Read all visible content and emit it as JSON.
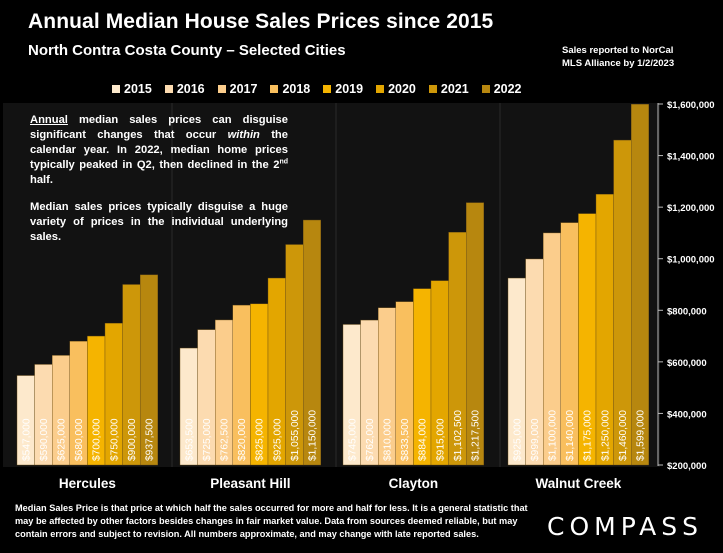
{
  "header": {
    "title": "Annual Median House Sales Prices since 2015",
    "subtitle": "North Contra Costa County – Selected Cities",
    "source_line1": "Sales reported to NorCal",
    "source_line2": "MLS Alliance by 1/2/2023"
  },
  "annotation": {
    "p1_a": "Annual",
    "p1_b": " median sales prices can disguise significant changes that occur ",
    "p1_c": "within",
    "p1_d": " the calendar year. In 2022, median home prices typically peaked in Q2, then declined in the 2",
    "p1_e": "nd",
    "p1_f": " half.",
    "p2": "Median sales prices typically disguise a huge variety of prices in the individual underlying sales."
  },
  "footer": {
    "text": "Median Sales Price is that price at which half the sales occurred for more and half for less. It is a general statistic that may be affected by other factors besides changes in fair market value. Data from sources deemed reliable, but may contain errors and subject to revision.  All numbers approximate, and may change with late reported sales."
  },
  "logo": {
    "text": "COMPASS"
  },
  "chart_data": {
    "type": "bar",
    "title": "Annual Median House Sales Prices since 2015",
    "subtitle": "North Contra Costa County – Selected Cities",
    "categories": [
      "Hercules",
      "Pleasant Hill",
      "Clayton",
      "Walnut Creek"
    ],
    "series": [
      {
        "name": "2015",
        "color": "#fde9cc",
        "values": [
          547000,
          653500,
          745000,
          925000
        ],
        "labels": [
          "$547,000",
          "$653,500",
          "$745,000",
          "$925,000"
        ]
      },
      {
        "name": "2016",
        "color": "#fcdbb0",
        "values": [
          590000,
          725000,
          762000,
          999000
        ],
        "labels": [
          "$590,000",
          "$725,000",
          "$762,000",
          "$999,000"
        ]
      },
      {
        "name": "2017",
        "color": "#fbcd8c",
        "values": [
          625000,
          762500,
          810000,
          1100000
        ],
        "labels": [
          "$625,000",
          "$762,500",
          "$810,000",
          "$1,100,000"
        ]
      },
      {
        "name": "2018",
        "color": "#f9bf5e",
        "values": [
          680000,
          820000,
          833500,
          1140000
        ],
        "labels": [
          "$680,000",
          "$820,000",
          "$833,500",
          "$1,140,000"
        ]
      },
      {
        "name": "2019",
        "color": "#f5b400",
        "values": [
          700000,
          825000,
          884000,
          1175000
        ],
        "labels": [
          "$700,000",
          "$825,000",
          "$884,000",
          "$1,175,000"
        ]
      },
      {
        "name": "2020",
        "color": "#e3a600",
        "values": [
          750000,
          925000,
          915000,
          1250000
        ],
        "labels": [
          "$750,000",
          "$925,000",
          "$915,000",
          "$1,250,000"
        ]
      },
      {
        "name": "2021",
        "color": "#cd9709",
        "values": [
          900000,
          1055000,
          1102500,
          1460000
        ],
        "labels": [
          "$900,000",
          "$1,055,000",
          "$1,102,500",
          "$1,460,000"
        ]
      },
      {
        "name": "2022",
        "color": "#b7870f",
        "values": [
          937500,
          1150000,
          1217500,
          1599000
        ],
        "labels": [
          "$937,500",
          "$1,150,000",
          "$1,217,500",
          "$1,599,000"
        ]
      }
    ],
    "ylim": [
      200000,
      1600000
    ],
    "yticks": [
      200000,
      400000,
      600000,
      800000,
      1000000,
      1200000,
      1400000,
      1600000
    ],
    "ytick_labels": [
      "$200,000",
      "$400,000",
      "$600,000",
      "$800,000",
      "$1,000,000",
      "$1,200,000",
      "$1,400,000",
      "$1,600,000"
    ],
    "yaxis_position": "right",
    "legend_position": "top",
    "grid": false,
    "xlabel": "",
    "ylabel": ""
  }
}
